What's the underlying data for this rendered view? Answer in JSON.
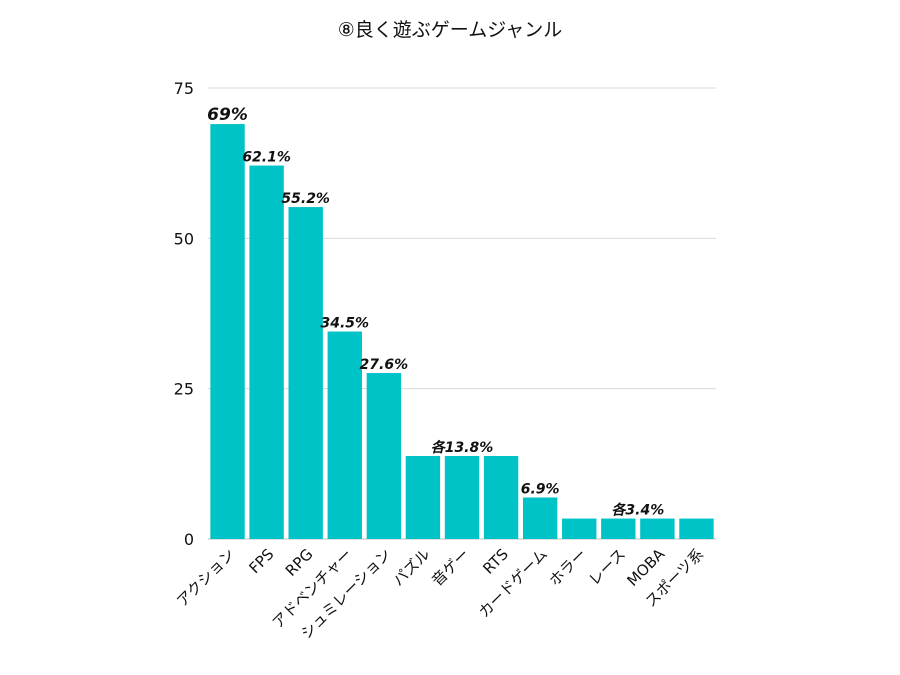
{
  "chart_data": {
    "type": "bar",
    "title": "⑧良く遊ぶゲームジャンル",
    "xlabel": "",
    "ylabel": "",
    "ylim": [
      0,
      75
    ],
    "yticks": [
      0,
      25,
      50,
      75
    ],
    "grid": true,
    "bar_color": "#00c3c8",
    "categories": [
      "アクション",
      "FPS",
      "RPG",
      "アドベンチャー",
      "シュミレーション",
      "パズル",
      "音ゲー",
      "RTS",
      "カードゲーム",
      "ホラー",
      "レース",
      "MOBA",
      "スポーツ系"
    ],
    "values": [
      69,
      62.1,
      55.2,
      34.5,
      27.6,
      13.8,
      13.8,
      13.8,
      6.9,
      3.4,
      3.4,
      3.4,
      3.4
    ],
    "data_labels": [
      {
        "text": "69%",
        "bars": [
          0
        ]
      },
      {
        "text": "62.1%",
        "bars": [
          1
        ]
      },
      {
        "text": "55.2%",
        "bars": [
          2
        ]
      },
      {
        "text": "34.5%",
        "bars": [
          3
        ]
      },
      {
        "text": "27.6%",
        "bars": [
          4
        ]
      },
      {
        "text": "各13.8%",
        "bars": [
          5,
          6,
          7
        ]
      },
      {
        "text": "6.9%",
        "bars": [
          8
        ]
      },
      {
        "text": "各3.4%",
        "bars": [
          9,
          10,
          11,
          12
        ]
      }
    ]
  }
}
